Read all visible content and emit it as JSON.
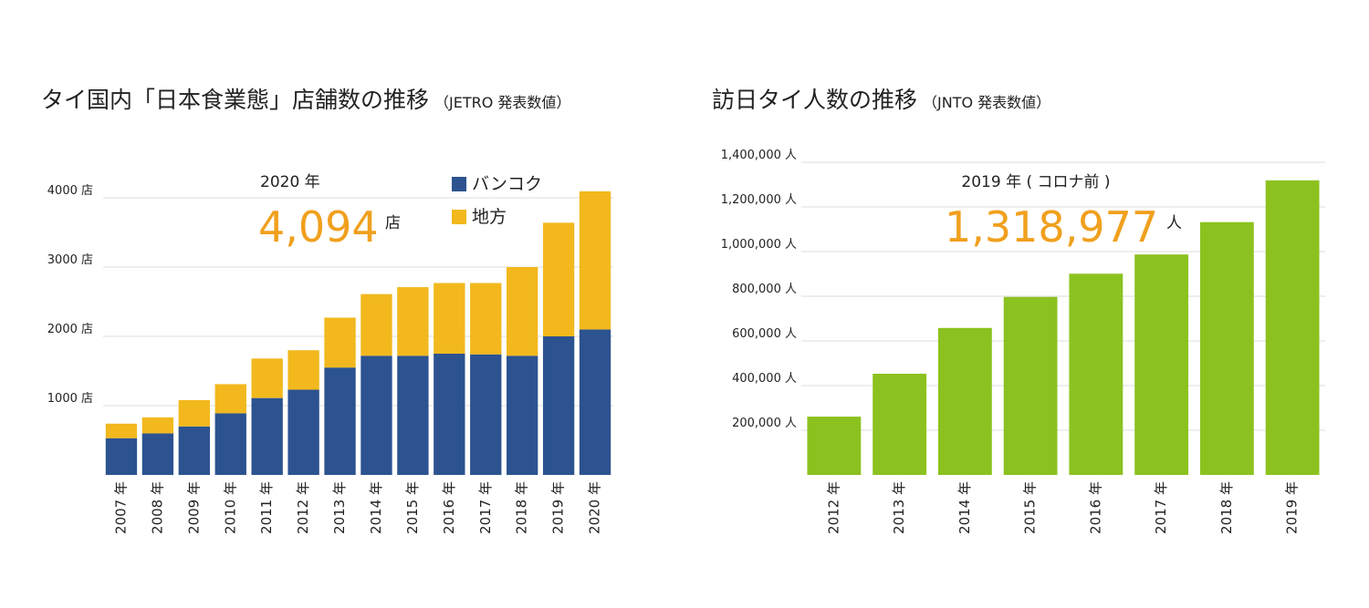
{
  "chart_data": [
    {
      "type": "bar",
      "stacked": true,
      "title": "タイ国内「日本食業態」店舗数の推移",
      "subtitle": "（JETRO 発表数値）",
      "categories": [
        "2007 年",
        "2008 年",
        "2009 年",
        "2010 年",
        "2011 年",
        "2012 年",
        "2013 年",
        "2014 年",
        "2015 年",
        "2016 年",
        "2017 年",
        "2018 年",
        "2019 年",
        "2020 年"
      ],
      "series": [
        {
          "name": "バンコク",
          "color": "#2c5390",
          "values": [
            530,
            600,
            700,
            890,
            1110,
            1230,
            1550,
            1720,
            1720,
            1750,
            1740,
            1720,
            2000,
            2100
          ]
        },
        {
          "name": "地方",
          "color": "#f2b81d",
          "values": [
            210,
            230,
            380,
            420,
            570,
            570,
            720,
            890,
            990,
            1020,
            1030,
            1280,
            1640,
            1994
          ]
        }
      ],
      "ylim": [
        0,
        4500
      ],
      "yticks": [
        {
          "value": 1000,
          "label": "1000 店"
        },
        {
          "value": 2000,
          "label": "2000 店"
        },
        {
          "value": 3000,
          "label": "3000 店"
        },
        {
          "value": 4000,
          "label": "4000 店"
        }
      ],
      "grid": true,
      "legend": "upper right",
      "annotations": [
        {
          "text": "2020 年"
        },
        {
          "text": "4,094"
        },
        {
          "text": "店"
        }
      ]
    },
    {
      "type": "bar",
      "title": "訪日タイ人数の推移",
      "subtitle": "（JNTO 発表数値）",
      "categories": [
        "2012 年",
        "2013 年",
        "2014 年",
        "2015 年",
        "2016 年",
        "2017 年",
        "2018 年",
        "2019 年"
      ],
      "values": [
        261000,
        453000,
        658000,
        797000,
        901000,
        987000,
        1132000,
        1318977
      ],
      "color": "#8cc21f",
      "ylim": [
        0,
        1400000
      ],
      "yticks": [
        {
          "value": 200000,
          "label": "200,000 人"
        },
        {
          "value": 400000,
          "label": "400,000 人"
        },
        {
          "value": 600000,
          "label": "600,000 人"
        },
        {
          "value": 800000,
          "label": "800,000 人"
        },
        {
          "value": 1000000,
          "label": "1,000,000 人"
        },
        {
          "value": 1200000,
          "label": "1,200,000 人"
        },
        {
          "value": 1400000,
          "label": "1,400,000 人"
        }
      ],
      "grid": true,
      "annotations": [
        {
          "text": "2019 年 ( コロナ前 )"
        },
        {
          "text": "1,318,977"
        },
        {
          "text": "人"
        }
      ]
    }
  ]
}
